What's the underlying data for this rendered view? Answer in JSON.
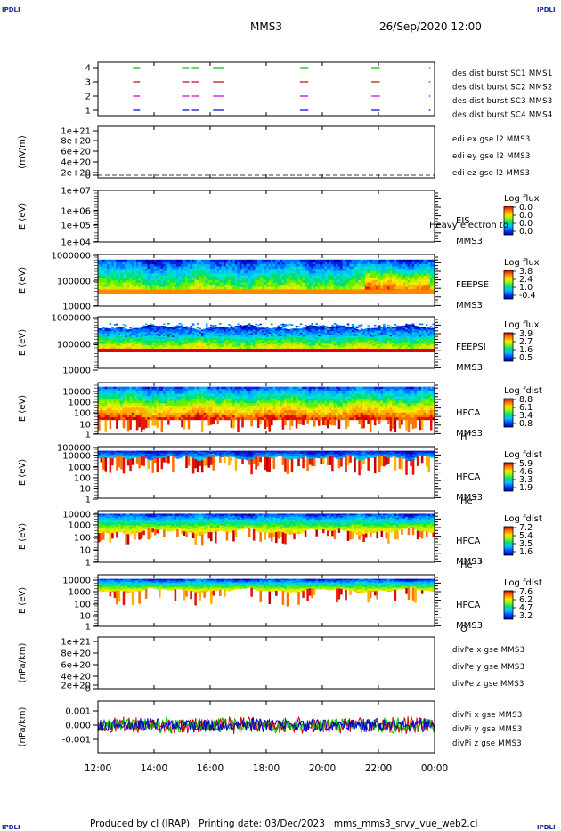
{
  "header": {
    "corner_label": "IPDLI",
    "mission": "MMS3",
    "datetime": "26/Sep/2020 12:00"
  },
  "footer": {
    "credit": "Produced by cl (IRAP)   Printing date: 03/Dec/2023   mms_mms3_srvy_vue_web2.cl"
  },
  "colors": {
    "blue": "#0000cc",
    "magenta": "#cc00cc",
    "red": "#cc0000",
    "green": "#00bb00"
  },
  "chart_data": {
    "type": "stacked-time-series",
    "x_ticks": [
      "12:00",
      "14:00",
      "16:00",
      "18:00",
      "20:00",
      "22:00",
      "00:00"
    ],
    "panels": [
      {
        "id": "burst",
        "type": "event-bars",
        "y_ticks": [
          "4",
          "3",
          "2",
          "1"
        ],
        "ylabel": "",
        "legend": [
          {
            "text": "des dist burst SC1 MMS1",
            "color": "#0000cc"
          },
          {
            "text": "des dist burst SC2 MMS2",
            "color": "#cc00cc"
          },
          {
            "text": "des dist burst SC3 MMS3",
            "color": "#cc0000"
          },
          {
            "text": "des dist burst SC4 MMS4",
            "color": "#00bb00"
          }
        ],
        "bursts_hours": [
          [
            13.25,
            13.5
          ],
          [
            15.0,
            15.25
          ],
          [
            15.35,
            15.6
          ],
          [
            16.1,
            16.5
          ],
          [
            19.2,
            19.5
          ],
          [
            21.75,
            22.05
          ],
          [
            23.8,
            23.85
          ]
        ]
      },
      {
        "id": "edi",
        "type": "line",
        "ylabel": "(mV/m)",
        "y_ticks": [
          "1e+21",
          "8e+20",
          "6e+20",
          "4e+20",
          "2e+20",
          "0"
        ],
        "legend": [
          {
            "text": "edi ex gse l2 MMS3",
            "color": "#cc0000"
          },
          {
            "text": "edi ey gse l2 MMS3",
            "color": "#00bb00"
          },
          {
            "text": "edi ez gse l2 MMS3",
            "color": "#0000cc"
          }
        ]
      },
      {
        "id": "eis",
        "type": "spectrogram",
        "ylabel": "E (eV)",
        "y_ticks": [
          "1e+07",
          "1e+06",
          "1e+05",
          "1e+04"
        ],
        "instrument": "EIS",
        "overlay_text": "Heavy electron to",
        "spacecraft": "MMS3",
        "cbar_title": "Log flux",
        "cbar_ticks": [
          "0.0",
          "0.0",
          "0.0",
          "0.0"
        ]
      },
      {
        "id": "feeps-e",
        "type": "spectrogram",
        "ylabel": "E (eV)",
        "y_ticks": [
          "1000000",
          "100000",
          "10000"
        ],
        "instrument": "FEEPSE",
        "spacecraft": "MMS3",
        "cbar_title": "Log flux",
        "cbar_ticks": [
          "3.8",
          "2.4",
          "1.0",
          "-0.4"
        ]
      },
      {
        "id": "feeps-i",
        "type": "spectrogram",
        "ylabel": "E (eV)",
        "y_ticks": [
          "1000000",
          "100000",
          "10000"
        ],
        "instrument": "FEEPSI",
        "spacecraft": "MMS3",
        "cbar_title": "Log flux",
        "cbar_ticks": [
          "3.9",
          "2.7",
          "1.6",
          "0.5"
        ]
      },
      {
        "id": "hpca-h",
        "type": "spectrogram",
        "ylabel": "E (eV)",
        "y_ticks": [
          "10000",
          "1000",
          "100",
          "10",
          "1"
        ],
        "instrument": "HPCA",
        "spacecraft": "MMS3",
        "species": "H",
        "species_sup": "+",
        "cbar_title": "Log fdist",
        "cbar_ticks": [
          "8.8",
          "6.1",
          "3.4",
          "0.8"
        ]
      },
      {
        "id": "hpca-he",
        "type": "spectrogram",
        "ylabel": "E (eV)",
        "y_ticks": [
          "100000",
          "10000",
          "1000",
          "100",
          "10",
          "1"
        ],
        "instrument": "HPCA",
        "spacecraft": "MMS3",
        "species": "He",
        "species_sup": "+",
        "cbar_title": "Log fdist",
        "cbar_ticks": [
          "5.9",
          "4.6",
          "3.3",
          "1.9"
        ]
      },
      {
        "id": "hpca-he2",
        "type": "spectrogram",
        "ylabel": "E (eV)",
        "y_ticks": [
          "10000",
          "1000",
          "100",
          "10",
          "1"
        ],
        "instrument": "HPCA",
        "spacecraft": "MMS3",
        "species": "He",
        "species_sup": "++",
        "cbar_title": "Log fdist",
        "cbar_ticks": [
          "7.2",
          "5.4",
          "3.5",
          "1.6"
        ]
      },
      {
        "id": "hpca-o",
        "type": "spectrogram",
        "ylabel": "E (eV)",
        "y_ticks": [
          "10000",
          "1000",
          "100",
          "10",
          "1"
        ],
        "instrument": "HPCA",
        "spacecraft": "MMS3",
        "species": "O",
        "species_sup": "+",
        "cbar_title": "Log fdist",
        "cbar_ticks": [
          "7.6",
          "6.2",
          "4.7",
          "3.2"
        ]
      },
      {
        "id": "divpe",
        "type": "line",
        "ylabel": "(nPa/km)",
        "y_ticks": [
          "1e+21",
          "8e+20",
          "6e+20",
          "4e+20",
          "2e+20",
          "0"
        ],
        "legend": [
          {
            "text": "divPe x gse MMS3",
            "color": "#cc0000"
          },
          {
            "text": "divPe y gse MMS3",
            "color": "#00bb00"
          },
          {
            "text": "divPe z gse MMS3",
            "color": "#0000cc"
          }
        ]
      },
      {
        "id": "divpi",
        "type": "line",
        "ylabel": "(nPa/km)",
        "y_ticks": [
          "0.001",
          "0.000",
          "-0.001"
        ],
        "legend": [
          {
            "text": "divPi x gse MMS3",
            "color": "#cc0000"
          },
          {
            "text": "divPi y gse MMS3",
            "color": "#00bb00"
          },
          {
            "text": "divPi z gse MMS3",
            "color": "#0000cc"
          }
        ]
      }
    ]
  }
}
